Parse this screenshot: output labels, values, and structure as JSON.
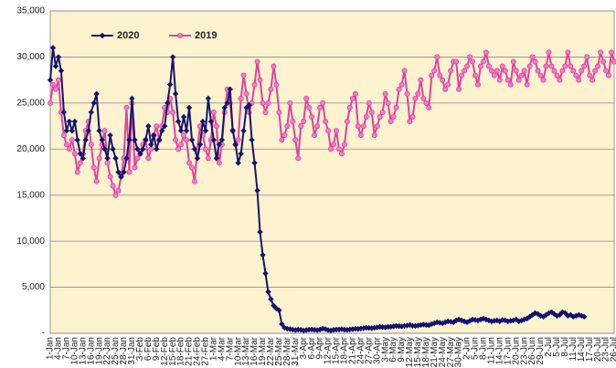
{
  "chart_data": {
    "type": "line",
    "categories": [
      "1-Jan",
      null,
      null,
      "4-Jan",
      null,
      null,
      "7-Jan",
      null,
      null,
      "10-Jan",
      null,
      null,
      "13-Jan",
      null,
      null,
      "16-Jan",
      null,
      null,
      "19-Jan",
      null,
      null,
      "22-Jan",
      null,
      null,
      "25-Jan",
      null,
      null,
      "28-Jan",
      null,
      null,
      "31-Jan",
      null,
      null,
      "3-Feb",
      null,
      null,
      "6-Feb",
      null,
      null,
      "9-Feb",
      null,
      null,
      "12-Feb",
      null,
      null,
      "15-Feb",
      null,
      null,
      "18-Feb",
      null,
      null,
      "21-Feb",
      null,
      null,
      "24-Feb",
      null,
      null,
      "27-Feb",
      null,
      null,
      "1-Mar",
      null,
      null,
      "4-Mar",
      null,
      null,
      "7-Mar",
      null,
      null,
      "10-Mar",
      null,
      null,
      "13-Mar",
      null,
      null,
      "16-Mar",
      null,
      null,
      "19-Mar",
      null,
      null,
      "22-Mar",
      null,
      null,
      "25-Mar",
      null,
      null,
      "28-Mar",
      null,
      null,
      "31-Mar",
      null,
      null,
      "3-Apr",
      null,
      null,
      "6-Apr",
      null,
      null,
      "9-Apr",
      null,
      null,
      "12-Apr",
      null,
      null,
      "15-Apr",
      null,
      null,
      "18-Apr",
      null,
      null,
      "21-Apr",
      null,
      null,
      "24-Apr",
      null,
      null,
      "27-Apr",
      null,
      null,
      "30-Apr",
      null,
      null,
      "3-May",
      null,
      null,
      "6-May",
      null,
      null,
      "9-May",
      null,
      null,
      "12-May",
      null,
      null,
      "15-May",
      null,
      null,
      "18-May",
      null,
      null,
      "21-May",
      null,
      null,
      "24-May",
      null,
      null,
      "27-May",
      null,
      null,
      "30-May",
      null,
      null,
      "2-Jun",
      null,
      null,
      "5-Jun",
      null,
      null,
      "8-Jun",
      null,
      null,
      "11-Jun",
      null,
      null,
      "14-Jun",
      null,
      null,
      "17-Jun",
      null,
      null,
      "20-Jun",
      null,
      null,
      "23-Jun",
      null,
      null,
      "26-Jun",
      null,
      null,
      "29-Jun",
      null,
      null,
      "2-Jul",
      null,
      null,
      "5-Jul",
      null,
      null,
      "8-Jul",
      null,
      null,
      "11-Jul",
      null,
      null,
      "14-Jul",
      null,
      null,
      "17-Jul",
      null,
      null,
      "20-Jul",
      null,
      null,
      "23-Jul",
      null,
      null,
      "26-Jul"
    ],
    "series": [
      {
        "name": "2020",
        "color": "#14146e",
        "marker": "diamond",
        "values": [
          27500,
          31000,
          29000,
          30000,
          28500,
          24000,
          22000,
          23000,
          22000,
          23000,
          21000,
          19500,
          19000,
          21000,
          22000,
          24000,
          25000,
          26000,
          22000,
          21000,
          20000,
          19000,
          21500,
          20000,
          19000,
          17500,
          17000,
          17500,
          19000,
          21000,
          25500,
          21000,
          20000,
          19500,
          20000,
          21000,
          22500,
          20500,
          21500,
          20000,
          21000,
          22000,
          22500,
          25000,
          27000,
          30000,
          26000,
          23000,
          22000,
          23500,
          22000,
          24500,
          21000,
          20000,
          19000,
          20500,
          23000,
          22000,
          25500,
          23000,
          21000,
          19000,
          20500,
          21000,
          24500,
          25000,
          26500,
          22000,
          20500,
          18500,
          19500,
          22000,
          24500,
          24800,
          21000,
          18500,
          15500,
          11000,
          8500,
          6500,
          4500,
          3700,
          3000,
          2700,
          2500,
          1000,
          600,
          500,
          450,
          400,
          350,
          400,
          380,
          300,
          350,
          400,
          420,
          380,
          350,
          400,
          500,
          450,
          350,
          300,
          380,
          400,
          420,
          450,
          400,
          380,
          420,
          450,
          500,
          480,
          520,
          550,
          600,
          580,
          550,
          600,
          650,
          700,
          680,
          650,
          700,
          720,
          750,
          800,
          780,
          750,
          800,
          850,
          900,
          820,
          800,
          850,
          900,
          950,
          900,
          880,
          1000,
          1100,
          1200,
          1150,
          1100,
          1200,
          1300,
          1250,
          1200,
          1400,
          1500,
          1400,
          1300,
          1200,
          1350,
          1500,
          1450,
          1400,
          1500,
          1600,
          1500,
          1400,
          1300,
          1350,
          1400,
          1300,
          1450,
          1400,
          1300,
          1350,
          1400,
          1500,
          1300,
          1400,
          1500,
          1600,
          1800,
          2000,
          2200,
          2100,
          1900,
          1800,
          2000,
          2200,
          2300,
          2100,
          1900,
          2000,
          2300,
          2200,
          1900,
          2000,
          1800,
          1900,
          2000,
          1900,
          1800,
          null,
          null,
          null,
          null,
          null,
          null,
          null,
          null,
          null,
          null,
          null
        ]
      },
      {
        "name": "2019",
        "color": "#e0409c",
        "marker": "circle",
        "values": [
          25000,
          27000,
          26500,
          27500,
          24000,
          21500,
          20500,
          20000,
          21000,
          19500,
          17500,
          18500,
          19500,
          22000,
          23000,
          20500,
          18000,
          16500,
          19000,
          20500,
          22000,
          18500,
          17000,
          16000,
          15000,
          15500,
          17000,
          19000,
          24500,
          17500,
          25000,
          18000,
          19000,
          19500,
          20500,
          21000,
          19000,
          20000,
          21500,
          22500,
          21000,
          22500,
          24500,
          24000,
          25500,
          24000,
          21000,
          20000,
          20500,
          21500,
          21000,
          18500,
          18000,
          16500,
          20000,
          22500,
          21500,
          20000,
          19000,
          21000,
          24000,
          22500,
          18500,
          20500,
          24000,
          26500,
          25000,
          22000,
          20500,
          21000,
          25500,
          28000,
          26000,
          24000,
          25000,
          27000,
          29500,
          27500,
          25000,
          24000,
          25000,
          26500,
          29000,
          27000,
          24000,
          21000,
          21500,
          22500,
          25000,
          23000,
          21000,
          19000,
          22500,
          23000,
          25500,
          24500,
          23500,
          21500,
          22500,
          24500,
          25000,
          23000,
          22000,
          20000,
          20500,
          22000,
          20000,
          19500,
          20500,
          23000,
          24500,
          25500,
          26000,
          22500,
          21500,
          22500,
          23500,
          25000,
          24000,
          21500,
          22500,
          23500,
          24000,
          26000,
          25000,
          23000,
          23500,
          24500,
          26500,
          27000,
          28500,
          26000,
          23000,
          23500,
          25500,
          26000,
          27500,
          25500,
          25000,
          24500,
          28000,
          28500,
          30000,
          28000,
          27500,
          26500,
          27000,
          28500,
          29500,
          29500,
          26500,
          28000,
          28500,
          29000,
          30000,
          29500,
          28000,
          27000,
          29000,
          29500,
          30500,
          29000,
          28500,
          28000,
          28500,
          27500,
          29000,
          28500,
          27500,
          27000,
          29500,
          28500,
          27500,
          28000,
          28500,
          27000,
          29000,
          30000,
          29500,
          28500,
          28000,
          27500,
          29000,
          30500,
          29000,
          28500,
          28000,
          27500,
          28500,
          29000,
          30500,
          29000,
          28500,
          28000,
          27500,
          28500,
          29000,
          30000,
          28000,
          27500,
          28500,
          29000,
          30500,
          29500,
          28500,
          28000,
          30500,
          29500
        ]
      }
    ],
    "ylim": [
      0,
      35000
    ],
    "yticks": [
      {
        "value": 0,
        "label": "-"
      },
      {
        "value": 5000,
        "label": "5,000"
      },
      {
        "value": 10000,
        "label": "10,000"
      },
      {
        "value": 15000,
        "label": "15,000"
      },
      {
        "value": 20000,
        "label": "20,000"
      },
      {
        "value": 25000,
        "label": "25,000"
      },
      {
        "value": 30000,
        "label": "30,000"
      },
      {
        "value": 35000,
        "label": "35,000"
      }
    ],
    "grid": true,
    "legend": "upper left",
    "plot_background": "#fdf3cf"
  }
}
